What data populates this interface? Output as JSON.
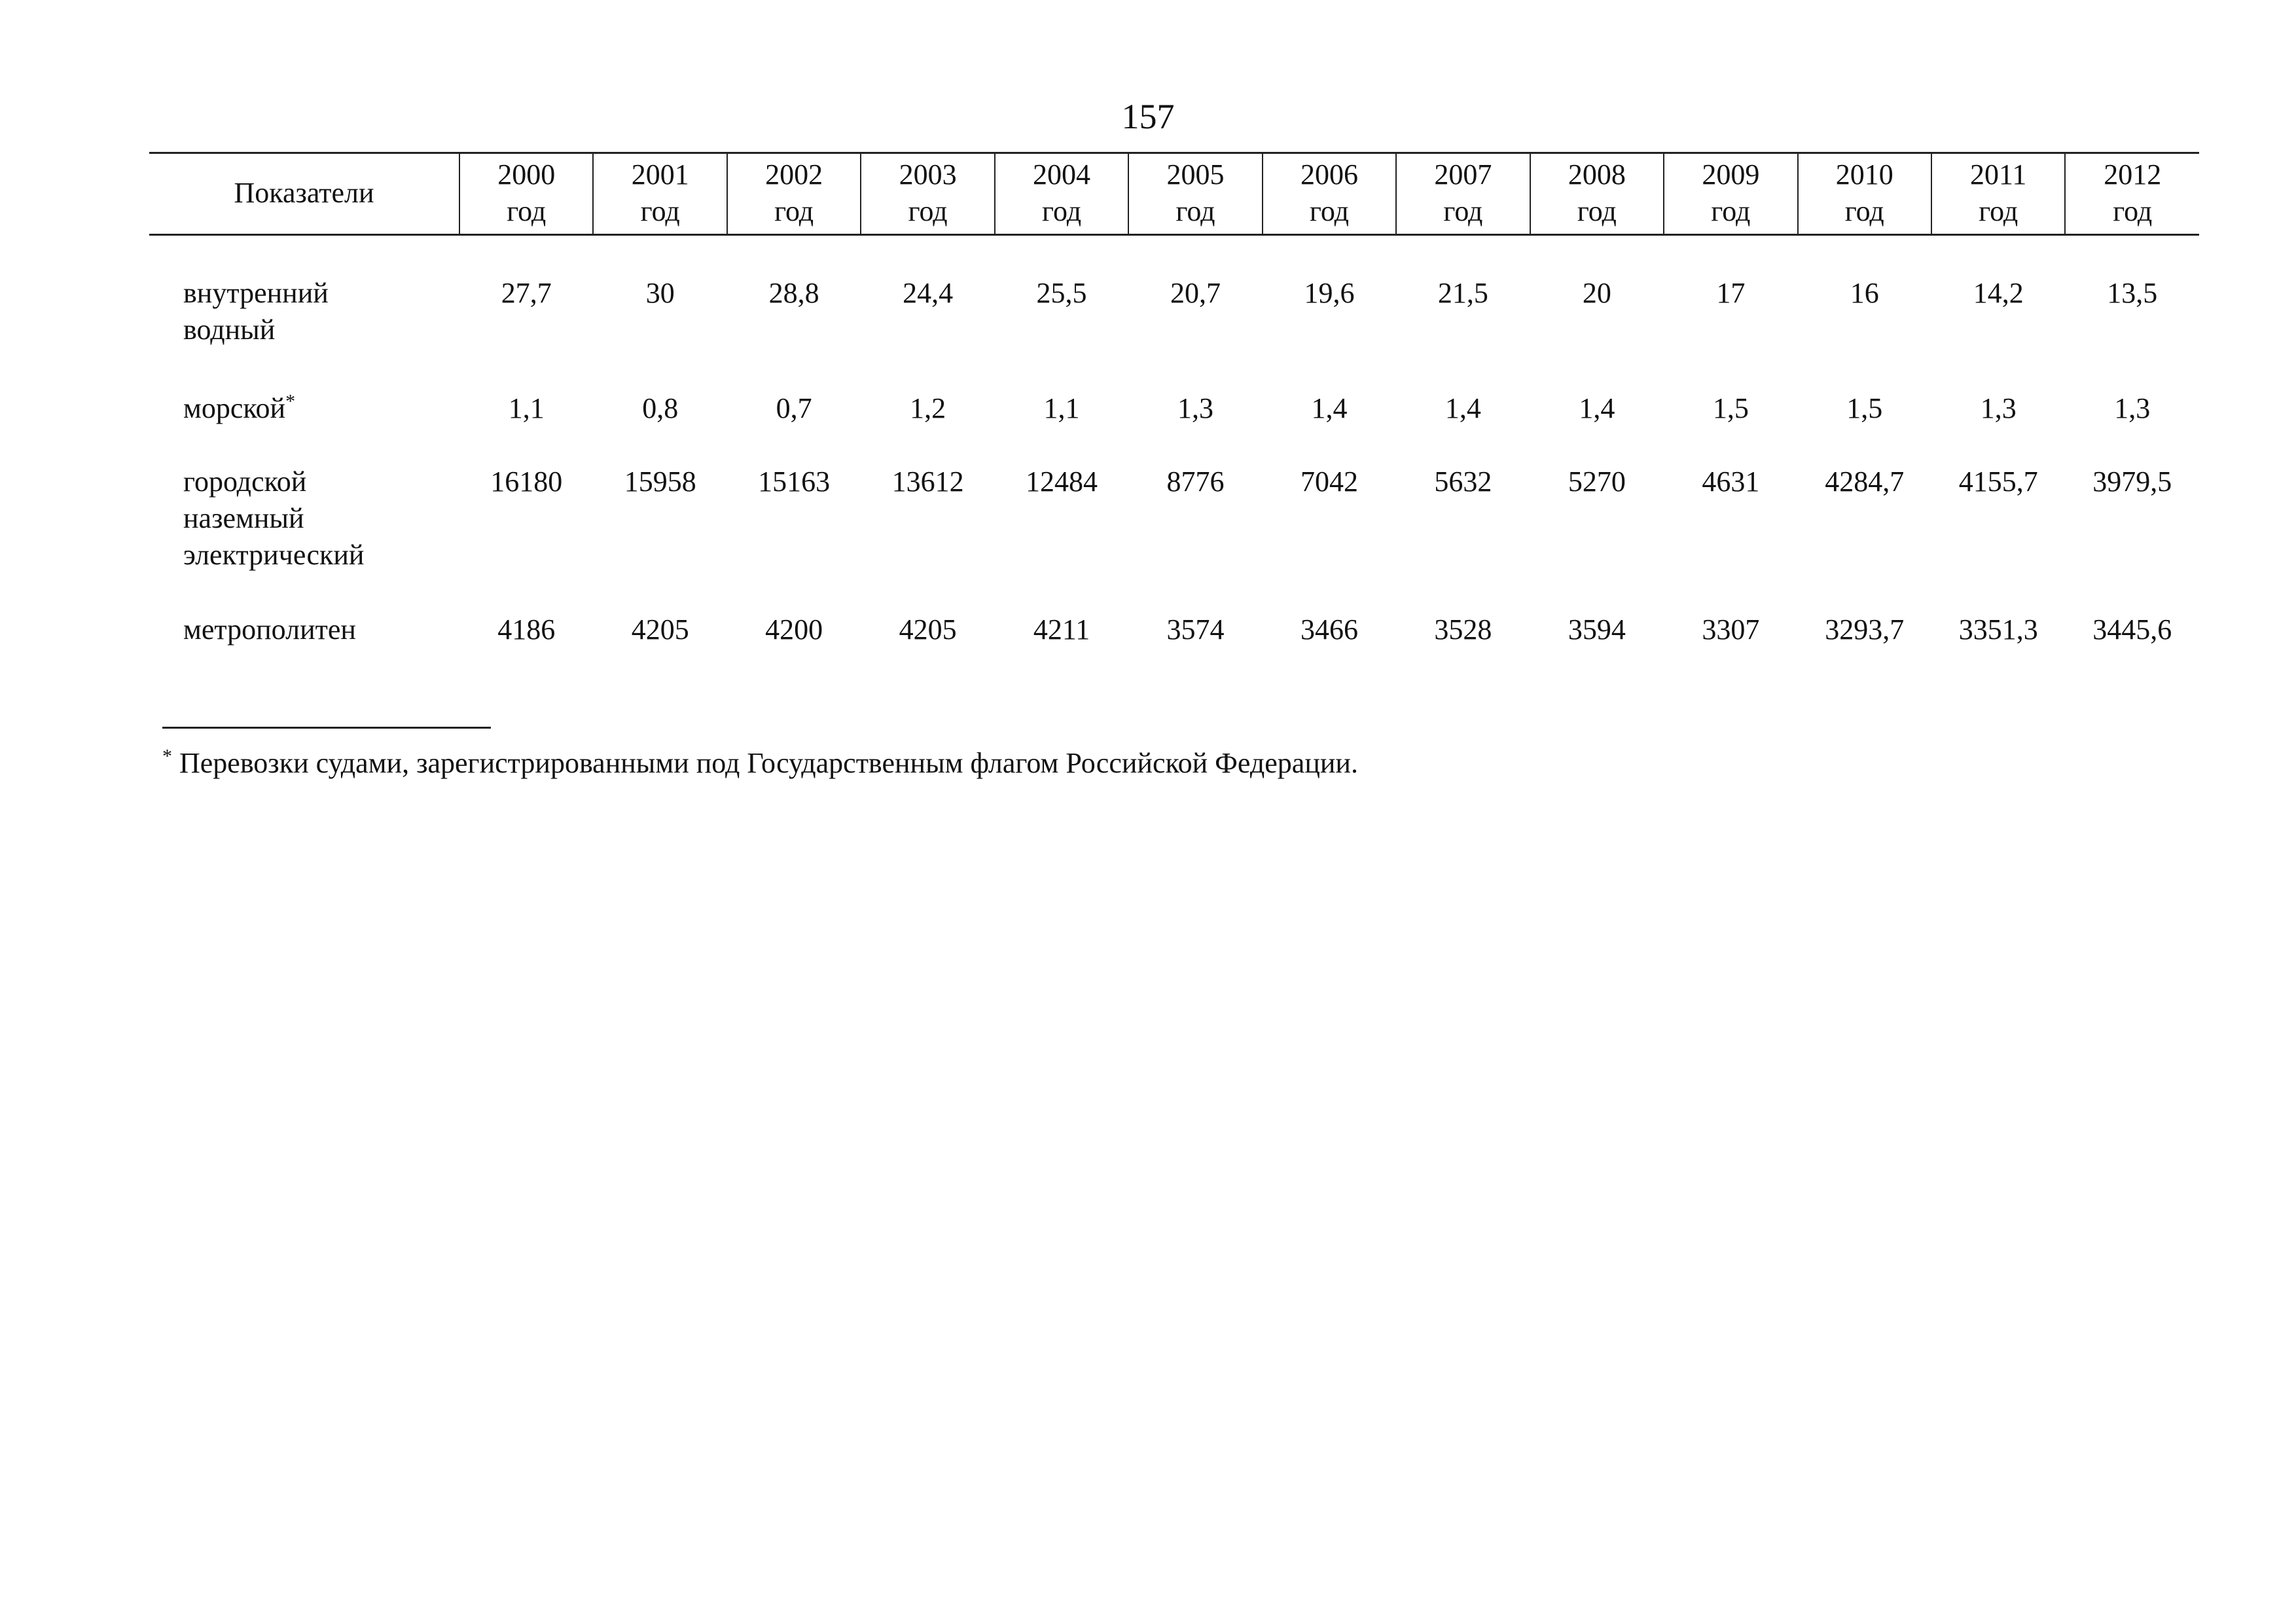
{
  "page_number": "157",
  "table": {
    "label_header": "Показатели",
    "years": [
      {
        "year": "2000",
        "unit": "год"
      },
      {
        "year": "2001",
        "unit": "год"
      },
      {
        "year": "2002",
        "unit": "год"
      },
      {
        "year": "2003",
        "unit": "год"
      },
      {
        "year": "2004",
        "unit": "год"
      },
      {
        "year": "2005",
        "unit": "год"
      },
      {
        "year": "2006",
        "unit": "год"
      },
      {
        "year": "2007",
        "unit": "год"
      },
      {
        "year": "2008",
        "unit": "год"
      },
      {
        "year": "2009",
        "unit": "год"
      },
      {
        "year": "2010",
        "unit": "год"
      },
      {
        "year": "2011",
        "unit": "год"
      },
      {
        "year": "2012",
        "unit": "год"
      }
    ],
    "rows": [
      {
        "label": "внутренний\nводный",
        "values": [
          "27,7",
          "30",
          "28,8",
          "24,4",
          "25,5",
          "20,7",
          "19,6",
          "21,5",
          "20",
          "17",
          "16",
          "14,2",
          "13,5"
        ]
      },
      {
        "label": "морской",
        "marker": "*",
        "values": [
          "1,1",
          "0,8",
          "0,7",
          "1,2",
          "1,1",
          "1,3",
          "1,4",
          "1,4",
          "1,4",
          "1,5",
          "1,5",
          "1,3",
          "1,3"
        ]
      },
      {
        "label": "городской\nназемный\nэлектрический",
        "values": [
          "16180",
          "15958",
          "15163",
          "13612",
          "12484",
          "8776",
          "7042",
          "5632",
          "5270",
          "4631",
          "4284,7",
          "4155,7",
          "3979,5"
        ]
      },
      {
        "label": "метрополитен",
        "values": [
          "4186",
          "4205",
          "4200",
          "4205",
          "4211",
          "3574",
          "3466",
          "3528",
          "3594",
          "3307",
          "3293,7",
          "3351,3",
          "3445,6"
        ]
      }
    ]
  },
  "footnote": {
    "marker": "*",
    "text": " Перевозки судами, зарегистрированными под Государственным флагом Российской Федерации."
  }
}
